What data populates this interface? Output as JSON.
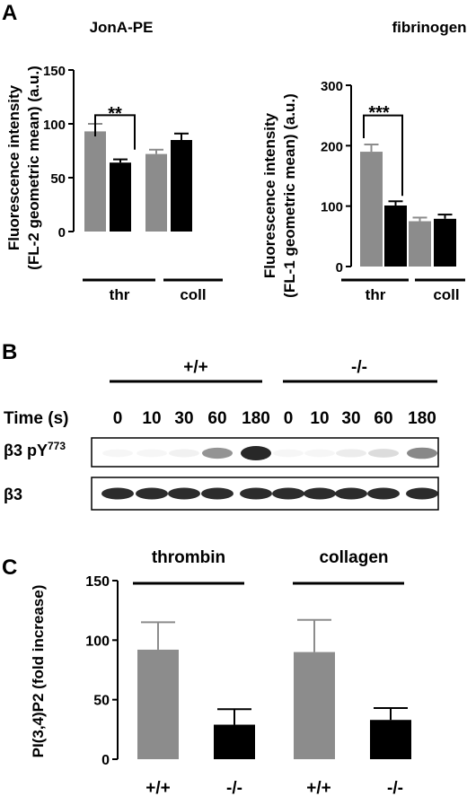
{
  "panel_labels": {
    "a": "A",
    "b": "B",
    "c": "C"
  },
  "colors": {
    "wildtype": "#8c8c8c",
    "knockout": "#000000",
    "axis": "#000000"
  },
  "panel_a_left": {
    "title": "JonA-PE",
    "ylabel_line1": "Fluorescence intensity",
    "ylabel_line2": "(FL-2 geometric mean) (a.u.)",
    "group_labels": [
      "thr",
      "coll"
    ],
    "significance": "**"
  },
  "panel_a_right": {
    "title": "fibrinogen",
    "ylabel_line1": "Fluorescence intensity",
    "ylabel_line2": "(FL-1 geometric mean) (a.u.)",
    "group_labels": [
      "thr",
      "coll"
    ],
    "significance": "***"
  },
  "panel_b": {
    "genotype_wt": "+/+",
    "genotype_ko": "-/-",
    "time_label": "Time (s)",
    "times": [
      "0",
      "10",
      "30",
      "60",
      "180",
      "0",
      "10",
      "30",
      "60",
      "180"
    ],
    "blot1_label": "β3 pY",
    "blot1_sup": "773",
    "blot2_label": "β3",
    "pY773_intensity": [
      0.02,
      0.03,
      0.06,
      0.45,
      0.9,
      0.02,
      0.03,
      0.08,
      0.15,
      0.5
    ]
  },
  "panel_c": {
    "ylabel": "PI(3,4)P2 (fold increase)",
    "group_labels": [
      "thrombin",
      "collagen"
    ],
    "x_labels": [
      "+/+",
      "-/-",
      "+/+",
      "-/-"
    ]
  },
  "chart_data": [
    {
      "type": "bar",
      "title": "JonA-PE",
      "ylabel": "Fluorescence intensity (FL-2 geometric mean) (a.u.)",
      "categories": [
        "thr",
        "thr",
        "coll",
        "coll"
      ],
      "values": [
        93,
        64,
        72,
        85
      ],
      "errors": [
        7,
        3,
        4,
        6
      ],
      "bar_colors": [
        "gray",
        "black",
        "gray",
        "black"
      ],
      "ylim": [
        0,
        150
      ],
      "yticks": [
        0,
        50,
        100,
        150
      ]
    },
    {
      "type": "bar",
      "title": "fibrinogen",
      "ylabel": "Fluorescence intensity (FL-1 geometric mean) (a.u.)",
      "categories": [
        "thr",
        "thr",
        "coll",
        "coll"
      ],
      "values": [
        190,
        101,
        75,
        79
      ],
      "errors": [
        12,
        7,
        6,
        7
      ],
      "bar_colors": [
        "gray",
        "black",
        "gray",
        "black"
      ],
      "ylim": [
        0,
        300
      ],
      "yticks": [
        0,
        100,
        200,
        300
      ]
    },
    {
      "type": "bar",
      "ylabel": "PI(3,4)P2 (fold increase)",
      "categories": [
        "+/+",
        "-/-",
        "+/+",
        "-/-"
      ],
      "groups": [
        "thrombin",
        "collagen"
      ],
      "values": [
        92,
        29,
        90,
        33
      ],
      "errors": [
        23,
        13,
        27,
        10
      ],
      "bar_colors": [
        "gray",
        "black",
        "gray",
        "black"
      ],
      "ylim": [
        0,
        150
      ],
      "yticks": [
        0,
        50,
        100,
        150
      ]
    }
  ]
}
